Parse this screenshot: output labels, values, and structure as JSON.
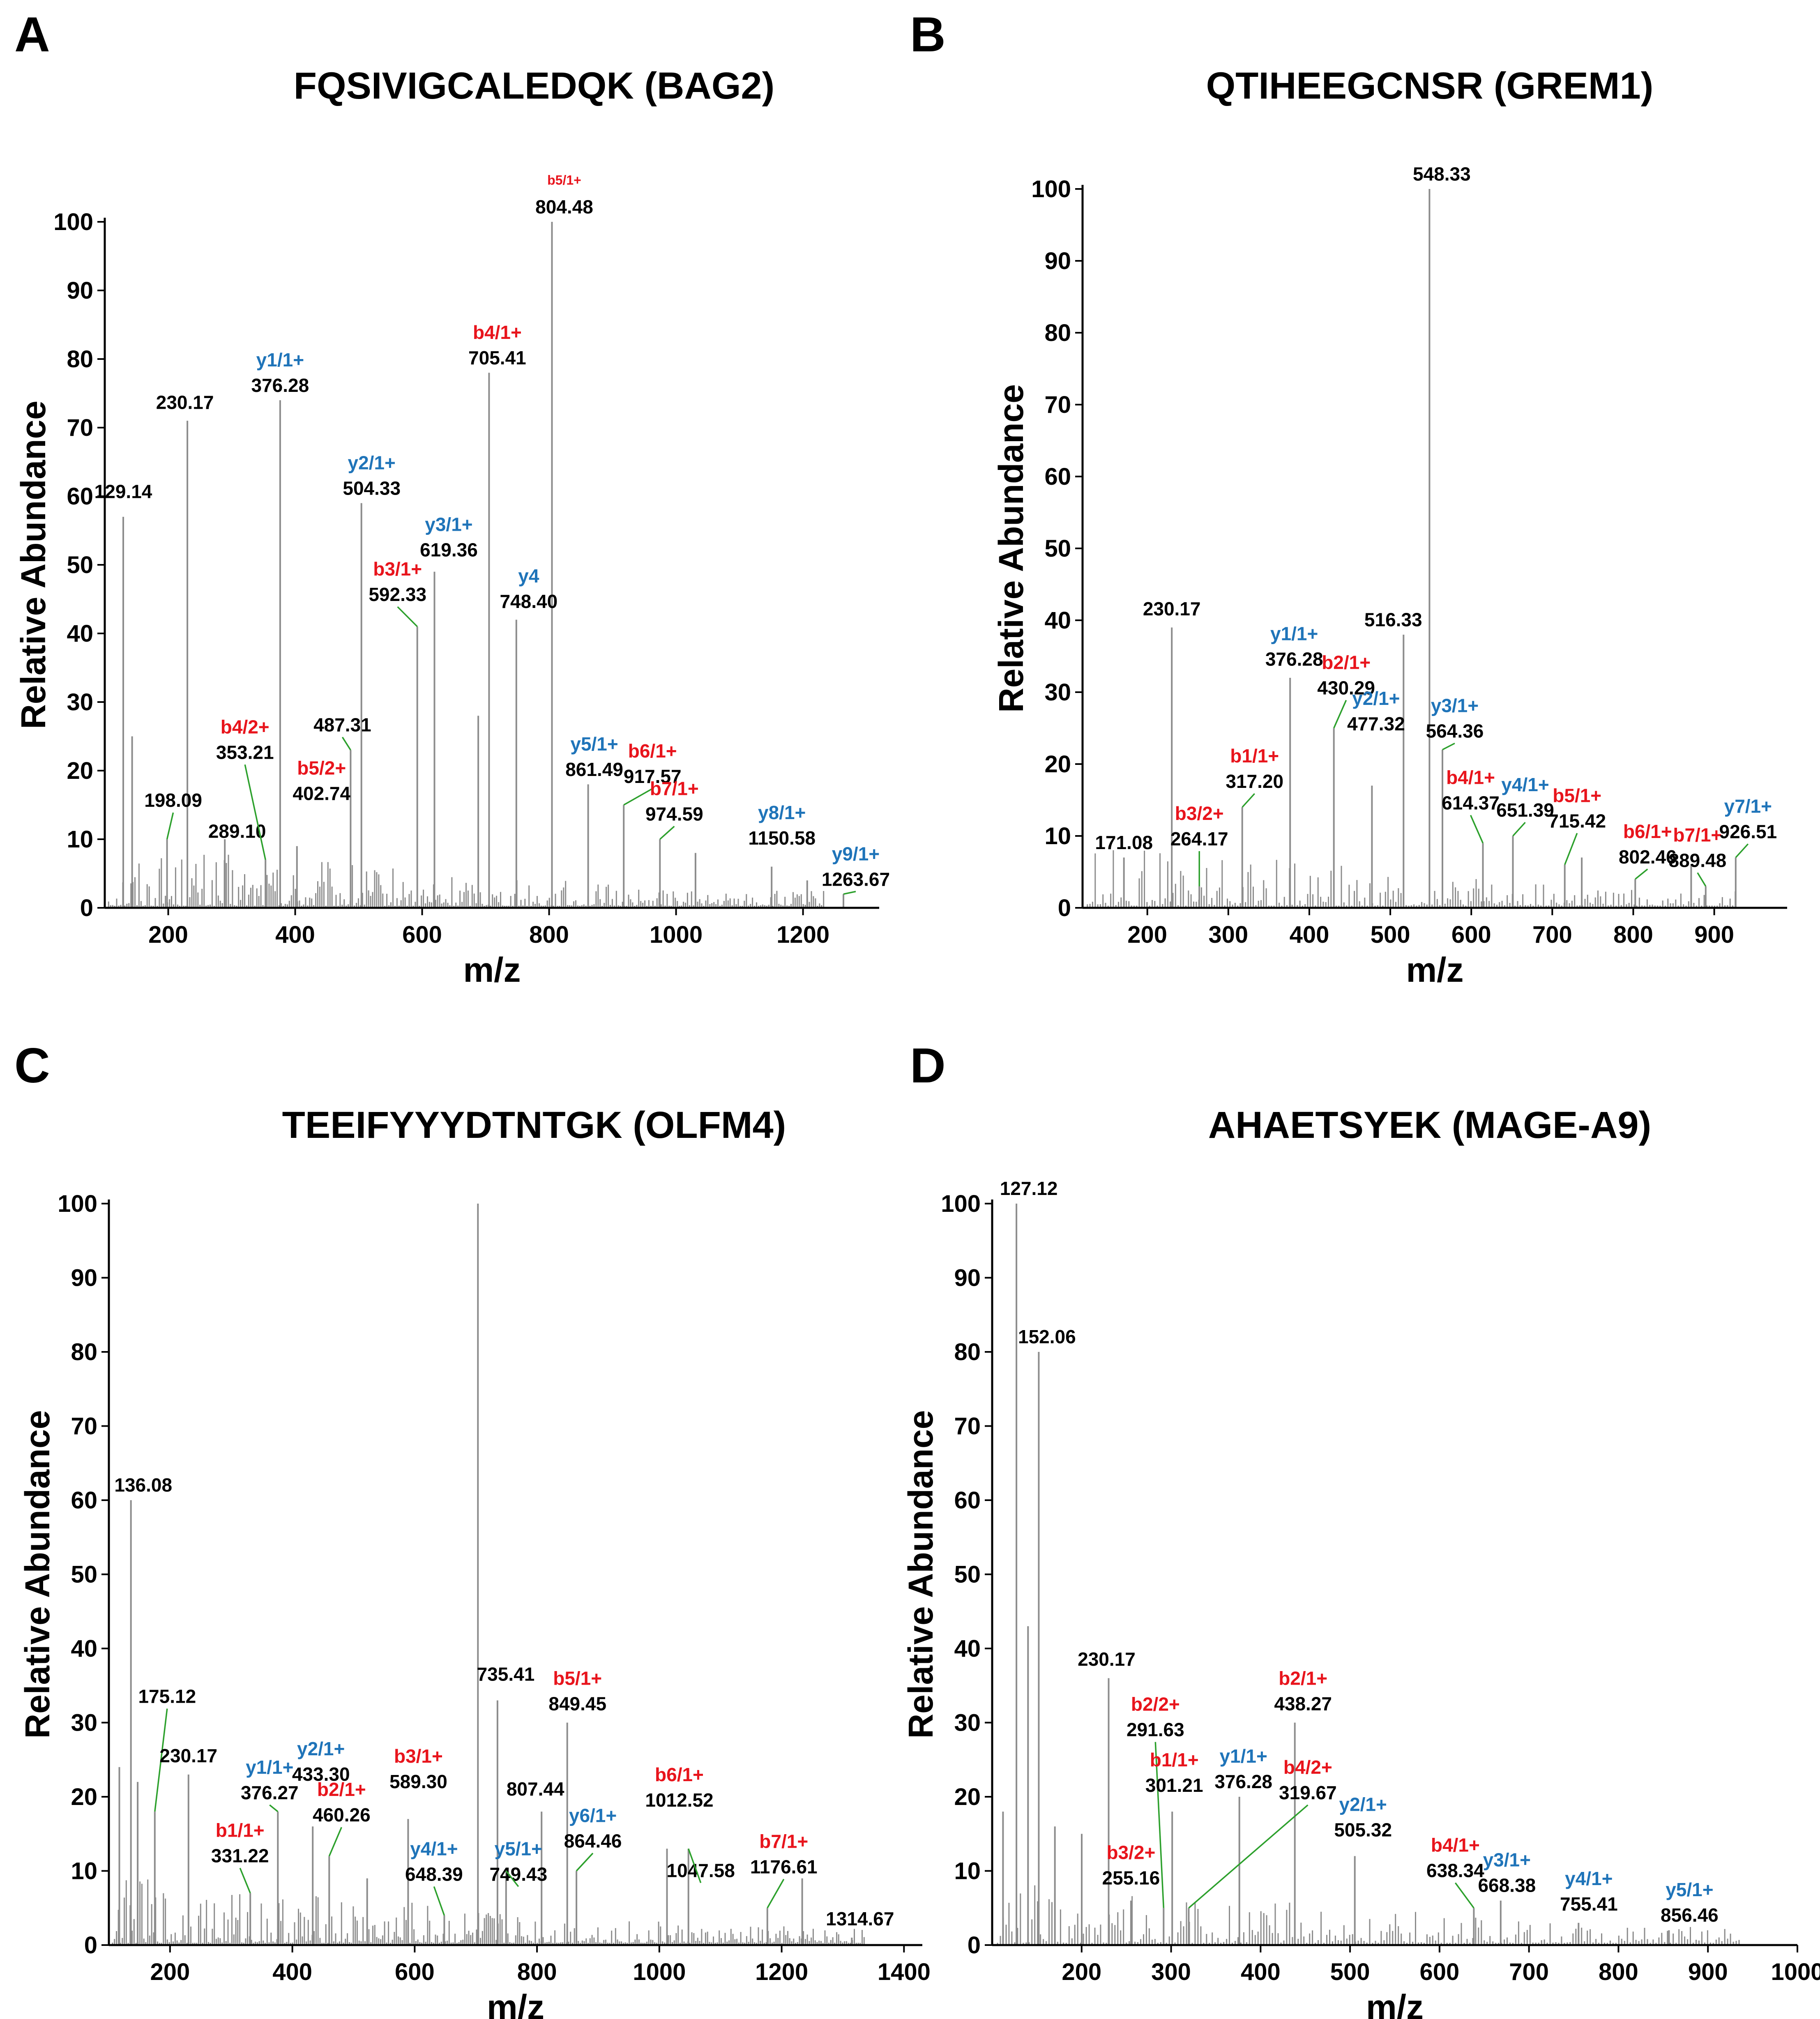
{
  "figure": {
    "colors": {
      "b_ion": "#e8141c",
      "y_ion": "#1f74b9",
      "leader": "#2ca02c",
      "peak": "#8c8c8c",
      "text": "#000000"
    }
  },
  "chart_data": [
    {
      "panel": "A",
      "type": "bar",
      "title": "FQSIVIGCALEDQK (BAG2)",
      "xlabel": "m/z",
      "ylabel": "Relative Abundance",
      "xlim": [
        100,
        1320
      ],
      "ylim": [
        0,
        100
      ],
      "xticks": [
        200,
        400,
        600,
        800,
        1000,
        1200
      ],
      "yticks": [
        0,
        10,
        20,
        30,
        40,
        50,
        60,
        70,
        80,
        90,
        100
      ],
      "peaks": [
        {
          "mz": 129.14,
          "intensity": 57
        },
        {
          "mz": 143.1,
          "intensity": 25
        },
        {
          "mz": 198.09,
          "intensity": 10
        },
        {
          "mz": 230.17,
          "intensity": 71
        },
        {
          "mz": 289.1,
          "intensity": 10
        },
        {
          "mz": 353.21,
          "intensity": 7
        },
        {
          "mz": 376.28,
          "intensity": 74
        },
        {
          "mz": 402.74,
          "intensity": 9
        },
        {
          "mz": 487.31,
          "intensity": 23
        },
        {
          "mz": 504.33,
          "intensity": 59
        },
        {
          "mz": 592.33,
          "intensity": 41
        },
        {
          "mz": 619.36,
          "intensity": 49
        },
        {
          "mz": 688.4,
          "intensity": 28
        },
        {
          "mz": 705.41,
          "intensity": 78
        },
        {
          "mz": 748.4,
          "intensity": 42
        },
        {
          "mz": 804.48,
          "intensity": 100
        },
        {
          "mz": 861.49,
          "intensity": 18
        },
        {
          "mz": 917.57,
          "intensity": 15
        },
        {
          "mz": 974.59,
          "intensity": 10
        },
        {
          "mz": 1030.6,
          "intensity": 8
        },
        {
          "mz": 1150.58,
          "intensity": 6
        },
        {
          "mz": 1206.6,
          "intensity": 4
        },
        {
          "mz": 1263.67,
          "intensity": 2
        }
      ],
      "labels": [
        {
          "mz": 129.14,
          "ion": "",
          "value": "129.14",
          "y_at": 59,
          "leader": false,
          "x_off": 0
        },
        {
          "mz": 230.17,
          "ion": "",
          "value": "230.17",
          "y_at": 72,
          "leader": false,
          "x_off": -6
        },
        {
          "mz": 198.09,
          "ion": "",
          "value": "198.09",
          "y_at": 14,
          "leader": true,
          "x_off": 15
        },
        {
          "mz": 289.1,
          "ion": "",
          "value": "289.10",
          "y_at": 9.5,
          "leader": false,
          "x_off": 30
        },
        {
          "mz": 376.28,
          "ion": "y1/1+",
          "value": "376.28",
          "y_at": 74.5,
          "leader": false,
          "x_off": 0
        },
        {
          "mz": 353.21,
          "ion": "b4/2+",
          "value": "353.21",
          "y_at": 21,
          "leader": true,
          "x_off": -50
        },
        {
          "mz": 402.74,
          "ion": "b5/2+",
          "value": "402.74",
          "y_at": 15,
          "leader": false,
          "x_off": 60
        },
        {
          "mz": 487.31,
          "ion": "",
          "value": "487.31",
          "y_at": 25,
          "leader": true,
          "x_off": -20
        },
        {
          "mz": 504.33,
          "ion": "y2/1+",
          "value": "504.33",
          "y_at": 59.5,
          "leader": false,
          "x_off": 25
        },
        {
          "mz": 619.36,
          "ion": "y3/1+",
          "value": "619.36",
          "y_at": 50.5,
          "leader": false,
          "x_off": 35
        },
        {
          "mz": 592.33,
          "ion": "b3/1+",
          "value": "592.33",
          "y_at": 44,
          "leader": true,
          "x_off": -48
        },
        {
          "mz": 705.41,
          "ion": "b4/1+",
          "value": "705.41",
          "y_at": 78.5,
          "leader": false,
          "x_off": 20
        },
        {
          "mz": 748.4,
          "ion": "y4",
          "value": "748.40",
          "y_at": 43,
          "leader": false,
          "x_off": 30
        },
        {
          "mz": 804.48,
          "ion": "b5/1+",
          "value": "804.48",
          "y_at": 100.5,
          "leader": false,
          "x_off": 30
        },
        {
          "mz": 861.49,
          "ion": "y5/1+",
          "value": "861.49",
          "y_at": 18.5,
          "leader": false,
          "x_off": 15
        },
        {
          "mz": 917.57,
          "ion": "b6/1+",
          "value": "917.57",
          "y_at": 17.5,
          "leader": true,
          "x_off": 70
        },
        {
          "mz": 974.59,
          "ion": "b7/1+",
          "value": "974.59",
          "y_at": 12,
          "leader": true,
          "x_off": 35
        },
        {
          "mz": 1150.58,
          "ion": "y8/1+",
          "value": "1150.58",
          "y_at": 8.5,
          "leader": false,
          "x_off": 25
        },
        {
          "mz": 1263.67,
          "ion": "y9/1+",
          "value": "1263.67",
          "y_at": 2.5,
          "leader": true,
          "x_off": 30
        }
      ]
    },
    {
      "panel": "B",
      "type": "bar",
      "title": "QTIHEEGCNSR (GREM1)",
      "xlabel": "m/z",
      "ylabel": "Relative Abundance",
      "xlim": [
        120,
        990
      ],
      "ylim": [
        0,
        100
      ],
      "xticks": [
        200,
        300,
        400,
        500,
        600,
        700,
        800,
        900
      ],
      "yticks": [
        0,
        10,
        20,
        30,
        40,
        50,
        60,
        70,
        80,
        90,
        100
      ],
      "peaks": [
        {
          "mz": 171.08,
          "intensity": 7
        },
        {
          "mz": 230.17,
          "intensity": 39
        },
        {
          "mz": 264.17,
          "intensity": 3
        },
        {
          "mz": 317.2,
          "intensity": 14
        },
        {
          "mz": 376.28,
          "intensity": 32
        },
        {
          "mz": 430.29,
          "intensity": 25
        },
        {
          "mz": 477.32,
          "intensity": 17
        },
        {
          "mz": 516.33,
          "intensity": 38
        },
        {
          "mz": 548.33,
          "intensity": 100
        },
        {
          "mz": 564.36,
          "intensity": 22
        },
        {
          "mz": 614.37,
          "intensity": 9
        },
        {
          "mz": 651.39,
          "intensity": 10
        },
        {
          "mz": 715.42,
          "intensity": 6
        },
        {
          "mz": 736.4,
          "intensity": 7
        },
        {
          "mz": 802.46,
          "intensity": 4
        },
        {
          "mz": 871.5,
          "intensity": 6
        },
        {
          "mz": 889.48,
          "intensity": 3
        },
        {
          "mz": 926.51,
          "intensity": 7
        }
      ],
      "labels": [
        {
          "mz": 171.08,
          "ion": "",
          "value": "171.08",
          "y_at": 7.5,
          "leader": false,
          "x_off": 0
        },
        {
          "mz": 230.17,
          "ion": "",
          "value": "230.17",
          "y_at": 40,
          "leader": false,
          "x_off": 0
        },
        {
          "mz": 264.17,
          "ion": "b3/2+",
          "value": "264.17",
          "y_at": 8,
          "leader": true,
          "x_off": 0
        },
        {
          "mz": 317.2,
          "ion": "b1/1+",
          "value": "317.20",
          "y_at": 16,
          "leader": true,
          "x_off": 30
        },
        {
          "mz": 376.28,
          "ion": "y1/1+",
          "value": "376.28",
          "y_at": 33,
          "leader": false,
          "x_off": 10
        },
        {
          "mz": 430.29,
          "ion": "b2/1+",
          "value": "430.29",
          "y_at": 29,
          "leader": true,
          "x_off": 30
        },
        {
          "mz": 477.32,
          "ion": "y2/1+",
          "value": "477.32",
          "y_at": 24,
          "leader": false,
          "x_off": 10
        },
        {
          "mz": 516.33,
          "ion": "",
          "value": "516.33",
          "y_at": 38.5,
          "leader": false,
          "x_off": -25
        },
        {
          "mz": 548.33,
          "ion": "",
          "value": "548.33",
          "y_at": 100.5,
          "leader": false,
          "x_off": 30
        },
        {
          "mz": 564.36,
          "ion": "y3/1+",
          "value": "564.36",
          "y_at": 23,
          "leader": true,
          "x_off": 30
        },
        {
          "mz": 614.37,
          "ion": "b4/1+",
          "value": "614.37",
          "y_at": 13,
          "leader": true,
          "x_off": -30
        },
        {
          "mz": 651.39,
          "ion": "y4/1+",
          "value": "651.39",
          "y_at": 12,
          "leader": true,
          "x_off": 30
        },
        {
          "mz": 715.42,
          "ion": "b5/1+",
          "value": "715.42",
          "y_at": 10.5,
          "leader": true,
          "x_off": 30
        },
        {
          "mz": 802.46,
          "ion": "b6/1+",
          "value": "802.46",
          "y_at": 5.5,
          "leader": true,
          "x_off": 30
        },
        {
          "mz": 889.48,
          "ion": "b7/1+",
          "value": "889.48",
          "y_at": 5,
          "leader": true,
          "x_off": -20
        },
        {
          "mz": 926.51,
          "ion": "y7/1+",
          "value": "926.51",
          "y_at": 9,
          "leader": true,
          "x_off": 30
        }
      ]
    },
    {
      "panel": "C",
      "type": "bar",
      "title": "TEEIFYYYDTNTGK (OLFM4)",
      "xlabel": "m/z",
      "ylabel": "Relative Abundance",
      "xlim": [
        100,
        1430
      ],
      "ylim": [
        0,
        100
      ],
      "xticks": [
        200,
        400,
        600,
        800,
        1000,
        1200,
        1400
      ],
      "yticks": [
        0,
        10,
        20,
        30,
        40,
        50,
        60,
        70,
        80,
        90,
        100
      ],
      "peaks": [
        {
          "mz": 117.1,
          "intensity": 24
        },
        {
          "mz": 136.08,
          "intensity": 60
        },
        {
          "mz": 147.1,
          "intensity": 22
        },
        {
          "mz": 175.12,
          "intensity": 18
        },
        {
          "mz": 230.17,
          "intensity": 23
        },
        {
          "mz": 331.22,
          "intensity": 7
        },
        {
          "mz": 376.27,
          "intensity": 18
        },
        {
          "mz": 433.3,
          "intensity": 16
        },
        {
          "mz": 460.26,
          "intensity": 12
        },
        {
          "mz": 522.3,
          "intensity": 9
        },
        {
          "mz": 589.3,
          "intensity": 17
        },
        {
          "mz": 648.39,
          "intensity": 4
        },
        {
          "mz": 703.4,
          "intensity": 100
        },
        {
          "mz": 735.41,
          "intensity": 33
        },
        {
          "mz": 749.43,
          "intensity": 10
        },
        {
          "mz": 807.44,
          "intensity": 18
        },
        {
          "mz": 849.45,
          "intensity": 30
        },
        {
          "mz": 864.46,
          "intensity": 10
        },
        {
          "mz": 1012.52,
          "intensity": 13
        },
        {
          "mz": 1047.58,
          "intensity": 13
        },
        {
          "mz": 1176.61,
          "intensity": 5
        },
        {
          "mz": 1233.6,
          "intensity": 9
        },
        {
          "mz": 1314.67,
          "intensity": 1
        }
      ],
      "labels": [
        {
          "mz": 136.08,
          "ion": "",
          "value": "136.08",
          "y_at": 60.5,
          "leader": false,
          "x_off": 30
        },
        {
          "mz": 175.12,
          "ion": "",
          "value": "175.12",
          "y_at": 32,
          "leader": true,
          "x_off": 30
        },
        {
          "mz": 230.17,
          "ion": "",
          "value": "230.17",
          "y_at": 24,
          "leader": false,
          "x_off": 0
        },
        {
          "mz": 331.22,
          "ion": "b1/1+",
          "value": "331.22",
          "y_at": 10.5,
          "leader": true,
          "x_off": -25
        },
        {
          "mz": 376.27,
          "ion": "y1/1+",
          "value": "376.27",
          "y_at": 19,
          "leader": true,
          "x_off": -20
        },
        {
          "mz": 433.3,
          "ion": "y2/1+",
          "value": "433.30",
          "y_at": 21.5,
          "leader": false,
          "x_off": 20
        },
        {
          "mz": 460.26,
          "ion": "b2/1+",
          "value": "460.26",
          "y_at": 16,
          "leader": true,
          "x_off": 30
        },
        {
          "mz": 589.3,
          "ion": "b3/1+",
          "value": "589.30",
          "y_at": 20.5,
          "leader": false,
          "x_off": 25
        },
        {
          "mz": 648.39,
          "ion": "y4/1+",
          "value": "648.39",
          "y_at": 8,
          "leader": true,
          "x_off": -25
        },
        {
          "mz": 735.41,
          "ion": "",
          "value": "735.41",
          "y_at": 35,
          "leader": false,
          "x_off": 20
        },
        {
          "mz": 749.43,
          "ion": "y5/1+",
          "value": "749.43",
          "y_at": 8,
          "leader": true,
          "x_off": 30
        },
        {
          "mz": 807.44,
          "ion": "",
          "value": "807.44",
          "y_at": 19.5,
          "leader": false,
          "x_off": -15
        },
        {
          "mz": 849.45,
          "ion": "b5/1+",
          "value": "849.45",
          "y_at": 31,
          "leader": false,
          "x_off": 25
        },
        {
          "mz": 864.46,
          "ion": "y6/1+",
          "value": "864.46",
          "y_at": 12.5,
          "leader": true,
          "x_off": 40
        },
        {
          "mz": 1012.52,
          "ion": "b6/1+",
          "value": "1012.52",
          "y_at": 18,
          "leader": false,
          "x_off": 30
        },
        {
          "mz": 1047.58,
          "ion": "",
          "value": "1047.58",
          "y_at": 8.5,
          "leader": true,
          "x_off": 30
        },
        {
          "mz": 1176.61,
          "ion": "b7/1+",
          "value": "1176.61",
          "y_at": 9,
          "leader": true,
          "x_off": 40
        },
        {
          "mz": 1314.67,
          "ion": "",
          "value": "1314.67",
          "y_at": 2,
          "leader": false,
          "x_off": 20
        }
      ]
    },
    {
      "panel": "D",
      "type": "bar",
      "title": "AHAETSYEK (MAGE-A9)",
      "xlabel": "m/z",
      "ylabel": "Relative Abundance",
      "xlim": [
        100,
        1000
      ],
      "ylim": [
        0,
        100
      ],
      "xticks": [
        200,
        300,
        400,
        500,
        600,
        700,
        800,
        900,
        1000
      ],
      "yticks": [
        0,
        10,
        20,
        30,
        40,
        50,
        60,
        70,
        80,
        90,
        100
      ],
      "peaks": [
        {
          "mz": 112.1,
          "intensity": 18
        },
        {
          "mz": 127.12,
          "intensity": 100
        },
        {
          "mz": 140.1,
          "intensity": 43
        },
        {
          "mz": 152.06,
          "intensity": 80
        },
        {
          "mz": 170.1,
          "intensity": 16
        },
        {
          "mz": 200.1,
          "intensity": 15
        },
        {
          "mz": 230.17,
          "intensity": 36
        },
        {
          "mz": 255.16,
          "intensity": 6
        },
        {
          "mz": 291.63,
          "intensity": 5
        },
        {
          "mz": 301.21,
          "intensity": 18
        },
        {
          "mz": 319.67,
          "intensity": 5
        },
        {
          "mz": 376.28,
          "intensity": 20
        },
        {
          "mz": 438.27,
          "intensity": 30
        },
        {
          "mz": 505.32,
          "intensity": 12
        },
        {
          "mz": 638.34,
          "intensity": 5
        },
        {
          "mz": 668.38,
          "intensity": 6
        },
        {
          "mz": 755.41,
          "intensity": 3
        },
        {
          "mz": 856.46,
          "intensity": 2
        }
      ],
      "labels": [
        {
          "mz": 127.12,
          "ion": "",
          "value": "127.12",
          "y_at": 100.5,
          "leader": false,
          "x_off": 30
        },
        {
          "mz": 152.06,
          "ion": "",
          "value": "152.06",
          "y_at": 80.5,
          "leader": false,
          "x_off": 20
        },
        {
          "mz": 230.17,
          "ion": "",
          "value": "230.17",
          "y_at": 37,
          "leader": false,
          "x_off": -5
        },
        {
          "mz": 291.63,
          "ion": "b2/2+",
          "value": "291.63",
          "y_at": 27.5,
          "leader": true,
          "x_off": -20
        },
        {
          "mz": 301.21,
          "ion": "b1/1+",
          "value": "301.21",
          "y_at": 20,
          "leader": false,
          "x_off": 5
        },
        {
          "mz": 255.16,
          "ion": "b3/2+",
          "value": "255.16",
          "y_at": 7.5,
          "leader": false,
          "x_off": 0
        },
        {
          "mz": 376.28,
          "ion": "y1/1+",
          "value": "376.28",
          "y_at": 20.5,
          "leader": false,
          "x_off": 10
        },
        {
          "mz": 438.27,
          "ion": "b2/1+",
          "value": "438.27",
          "y_at": 31,
          "leader": false,
          "x_off": 20
        },
        {
          "mz": 319.67,
          "ion": "b4/2+",
          "value": "319.67",
          "y_at": 19,
          "leader": true,
          "x_off": 290
        },
        {
          "mz": 505.32,
          "ion": "y2/1+",
          "value": "505.32",
          "y_at": 14,
          "leader": false,
          "x_off": 20
        },
        {
          "mz": 638.34,
          "ion": "b4/1+",
          "value": "638.34",
          "y_at": 8.5,
          "leader": true,
          "x_off": -45
        },
        {
          "mz": 668.38,
          "ion": "y3/1+",
          "value": "668.38",
          "y_at": 6.5,
          "leader": false,
          "x_off": 15
        },
        {
          "mz": 755.41,
          "ion": "y4/1+",
          "value": "755.41",
          "y_at": 4,
          "leader": false,
          "x_off": 25
        },
        {
          "mz": 856.46,
          "ion": "y5/1+",
          "value": "856.46",
          "y_at": 2.5,
          "leader": false,
          "x_off": 50
        }
      ]
    }
  ]
}
